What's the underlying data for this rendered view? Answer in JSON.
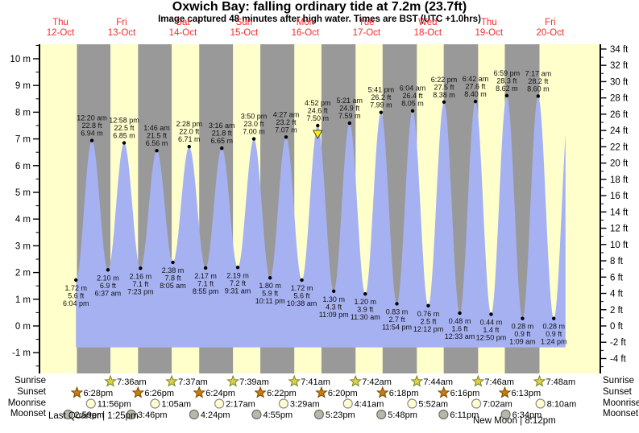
{
  "title": "Oxwich Bay: falling  ordinary tide at 7.2m (23.7ft)",
  "subtitle": "Image captured 48 minutes after high water. Times are BST (UTC +1.0hrs)",
  "colors": {
    "day_band": "#ffffcc",
    "night_band": "#999999",
    "tide_fill": "#a6b1f2",
    "day_label": "#f42a2a",
    "axis": "#000000",
    "marker_arrow": "#ffee00",
    "sunrise_star": "#dcd34a",
    "sunset_star": "#c97d0e",
    "moonrise_circle": "#ffffd0",
    "moonset_circle": "#b8b8a8"
  },
  "day_labels": [
    {
      "dow": "Thu",
      "date": "12-Oct"
    },
    {
      "dow": "Fri",
      "date": "13-Oct"
    },
    {
      "dow": "Sat",
      "date": "14-Oct"
    },
    {
      "dow": "Sun",
      "date": "15-Oct"
    },
    {
      "dow": "Mon",
      "date": "16-Oct"
    },
    {
      "dow": "Tue",
      "date": "17-Oct"
    },
    {
      "dow": "Wed",
      "date": "18-Oct"
    },
    {
      "dow": "Thu",
      "date": "19-Oct"
    },
    {
      "dow": "Fri",
      "date": "20-Oct"
    }
  ],
  "chart_data": {
    "type": "area",
    "title": "Tide height curve",
    "ylabel_left": "m",
    "ylabel_right": "ft",
    "ylim_m": [
      -1,
      10
    ],
    "left_ticks_m": [
      10,
      9,
      8,
      7,
      6,
      5,
      4,
      3,
      2,
      1,
      0,
      -1
    ],
    "right_ticks_ft": [
      34,
      32,
      30,
      28,
      26,
      24,
      22,
      20,
      18,
      16,
      14,
      12,
      10,
      8,
      6,
      4,
      2,
      0,
      -2,
      -4
    ],
    "tick_suffix_left": " m",
    "tick_suffix_right": " ft",
    "tide_events": [
      {
        "type": "low",
        "time": "6:04 pm",
        "t": 18.067,
        "m": 1.72,
        "ft": 5.6
      },
      {
        "type": "high",
        "time": "12:20 am",
        "t": 24.333,
        "m": 6.94,
        "ft": 22.8
      },
      {
        "type": "low",
        "time": "6:37 am",
        "t": 30.617,
        "m": 2.1,
        "ft": 6.9
      },
      {
        "type": "high",
        "time": "12:58 pm",
        "t": 36.967,
        "m": 6.85,
        "ft": 22.5
      },
      {
        "type": "low",
        "time": "7:23 pm",
        "t": 43.383,
        "m": 2.16,
        "ft": 7.1
      },
      {
        "type": "high",
        "time": "1:46 am",
        "t": 49.767,
        "m": 6.56,
        "ft": 21.5
      },
      {
        "type": "low",
        "time": "8:05 am",
        "t": 56.083,
        "m": 2.38,
        "ft": 7.8
      },
      {
        "type": "high",
        "time": "2:28 pm",
        "t": 62.467,
        "m": 6.71,
        "ft": 22.0
      },
      {
        "type": "low",
        "time": "8:55 pm",
        "t": 68.917,
        "m": 2.17,
        "ft": 7.1
      },
      {
        "type": "high",
        "time": "3:16 am",
        "t": 75.267,
        "m": 6.65,
        "ft": 21.8
      },
      {
        "type": "low",
        "time": "9:31 am",
        "t": 81.517,
        "m": 2.19,
        "ft": 7.2
      },
      {
        "type": "high",
        "time": "3:50 pm",
        "t": 87.833,
        "m": 7.0,
        "ft": 23.0
      },
      {
        "type": "low",
        "time": "10:11 pm",
        "t": 94.183,
        "m": 1.8,
        "ft": 5.9
      },
      {
        "type": "high",
        "time": "4:27 am",
        "t": 100.45,
        "m": 7.07,
        "ft": 23.2
      },
      {
        "type": "low",
        "time": "10:38 am",
        "t": 106.633,
        "m": 1.72,
        "ft": 5.6
      },
      {
        "type": "high",
        "time": "4:52 pm",
        "t": 112.867,
        "m": 7.5,
        "ft": 24.6
      },
      {
        "type": "low",
        "time": "11:09 pm",
        "t": 119.15,
        "m": 1.3,
        "ft": 4.3
      },
      {
        "type": "high",
        "time": "5:21 am",
        "t": 125.35,
        "m": 7.59,
        "ft": 24.9
      },
      {
        "type": "low",
        "time": "11:30 am",
        "t": 131.5,
        "m": 1.2,
        "ft": 3.9
      },
      {
        "type": "high",
        "time": "5:41 pm",
        "t": 137.683,
        "m": 7.99,
        "ft": 26.2
      },
      {
        "type": "low",
        "time": "11:54 pm",
        "t": 143.9,
        "m": 0.83,
        "ft": 2.7
      },
      {
        "type": "high",
        "time": "6:04 am",
        "t": 150.067,
        "m": 8.05,
        "ft": 26.4
      },
      {
        "type": "low",
        "time": "12:12 pm",
        "t": 156.2,
        "m": 0.76,
        "ft": 2.5
      },
      {
        "type": "high",
        "time": "6:22 pm",
        "t": 162.367,
        "m": 8.38,
        "ft": 27.5
      },
      {
        "type": "low",
        "time": "12:33 am",
        "t": 168.55,
        "m": 0.48,
        "ft": 1.6
      },
      {
        "type": "high",
        "time": "6:42 am",
        "t": 174.7,
        "m": 8.4,
        "ft": 27.6
      },
      {
        "type": "low",
        "time": "12:50 pm",
        "t": 180.833,
        "m": 0.44,
        "ft": 1.4
      },
      {
        "type": "high",
        "time": "6:59 pm",
        "t": 186.983,
        "m": 8.62,
        "ft": 28.3
      },
      {
        "type": "low",
        "time": "1:09 am",
        "t": 193.15,
        "m": 0.28,
        "ft": 0.9
      },
      {
        "type": "high",
        "time": "7:17 am",
        "t": 199.283,
        "m": 8.6,
        "ft": 28.2
      },
      {
        "type": "low",
        "time": "1:24 pm",
        "t": 205.4,
        "m": 0.28,
        "ft": 0.9
      }
    ],
    "current_marker": {
      "event_index": 15,
      "symbol": "yellow-down-arrow"
    }
  },
  "astro": {
    "row_labels": [
      "Sunrise",
      "Sunset",
      "Moonrise",
      "Moonset"
    ],
    "sunrise": [
      {
        "time": "7:36am",
        "t": 31.6
      },
      {
        "time": "7:37am",
        "t": 55.617
      },
      {
        "time": "7:39am",
        "t": 79.65
      },
      {
        "time": "7:41am",
        "t": 103.683
      },
      {
        "time": "7:42am",
        "t": 127.7
      },
      {
        "time": "7:44am",
        "t": 151.733
      },
      {
        "time": "7:46am",
        "t": 175.767
      },
      {
        "time": "7:48am",
        "t": 199.8
      }
    ],
    "sunset": [
      {
        "time": "6:28pm",
        "t": 18.467
      },
      {
        "time": "6:26pm",
        "t": 42.433
      },
      {
        "time": "6:24pm",
        "t": 66.4
      },
      {
        "time": "6:22pm",
        "t": 90.367
      },
      {
        "time": "6:20pm",
        "t": 114.333
      },
      {
        "time": "6:18pm",
        "t": 138.3
      },
      {
        "time": "6:16pm",
        "t": 162.267
      },
      {
        "time": "6:13pm",
        "t": 186.217
      }
    ],
    "moonrise": [
      {
        "time": "11:56pm",
        "t": 23.933
      },
      {
        "time": "1:05am",
        "t": 49.083
      },
      {
        "time": "2:17am",
        "t": 74.283
      },
      {
        "time": "3:29am",
        "t": 99.483
      },
      {
        "time": "4:41am",
        "t": 124.683
      },
      {
        "time": "5:52am",
        "t": 149.867
      },
      {
        "time": "7:02am",
        "t": 175.033
      },
      {
        "time": "8:10am",
        "t": 200.167
      }
    ],
    "moonset": [
      {
        "time": "2:59pm",
        "t": 14.983
      },
      {
        "time": "3:46pm",
        "t": 39.767
      },
      {
        "time": "4:24pm",
        "t": 64.4
      },
      {
        "time": "4:55pm",
        "t": 88.917
      },
      {
        "time": "5:23pm",
        "t": 113.383
      },
      {
        "time": "5:48pm",
        "t": 137.8
      },
      {
        "time": "6:11pm",
        "t": 162.183
      },
      {
        "time": "6:34pm",
        "t": 186.567
      }
    ]
  },
  "phases": [
    {
      "text": "Last Quarter | 1:25pm"
    },
    {
      "text": "New Moon | 8:12pm"
    }
  ]
}
